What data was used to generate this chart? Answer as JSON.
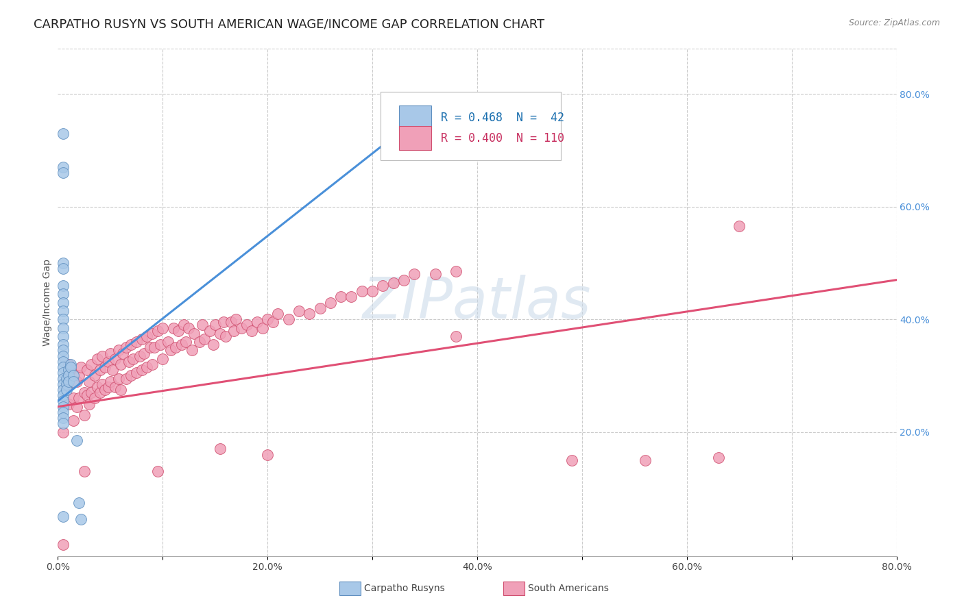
{
  "title": "CARPATHO RUSYN VS SOUTH AMERICAN WAGE/INCOME GAP CORRELATION CHART",
  "source": "Source: ZipAtlas.com",
  "ylabel": "Wage/Income Gap",
  "xlim": [
    0,
    0.8
  ],
  "ylim": [
    -0.02,
    0.88
  ],
  "ytick_right_vals": [
    0.2,
    0.4,
    0.6,
    0.8
  ],
  "ytick_right_labels": [
    "20.0%",
    "40.0%",
    "60.0%",
    "80.0%"
  ],
  "xtick_vals": [
    0.0,
    0.1,
    0.2,
    0.3,
    0.4,
    0.5,
    0.6,
    0.7,
    0.8
  ],
  "xtick_labels": [
    "0.0%",
    "",
    "20.0%",
    "",
    "40.0%",
    "",
    "60.0%",
    "",
    "80.0%"
  ],
  "legend_text": [
    {
      "text": "R = 0.468  N =  42",
      "color": "#1a6faf"
    },
    {
      "text": "R = 0.400  N = 110",
      "color": "#c83060"
    }
  ],
  "legend_entries": [
    {
      "label": "Carpatho Rusyns",
      "scatter_color": "#a8c8e8",
      "edge_color": "#6090c0"
    },
    {
      "label": "South Americans",
      "scatter_color": "#f0a0b8",
      "edge_color": "#d05070"
    }
  ],
  "blue_scatter_x": [
    0.005,
    0.005,
    0.005,
    0.005,
    0.005,
    0.005,
    0.005,
    0.005,
    0.005,
    0.005,
    0.005,
    0.005,
    0.005,
    0.005,
    0.005,
    0.005,
    0.005,
    0.005,
    0.005,
    0.005,
    0.005,
    0.005,
    0.005,
    0.005,
    0.005,
    0.005,
    0.005,
    0.008,
    0.008,
    0.008,
    0.01,
    0.01,
    0.01,
    0.012,
    0.012,
    0.015,
    0.015,
    0.018,
    0.02,
    0.022,
    0.34,
    0.005
  ],
  "blue_scatter_y": [
    0.73,
    0.67,
    0.66,
    0.5,
    0.49,
    0.46,
    0.445,
    0.43,
    0.415,
    0.4,
    0.385,
    0.37,
    0.355,
    0.345,
    0.335,
    0.325,
    0.315,
    0.305,
    0.295,
    0.285,
    0.275,
    0.265,
    0.255,
    0.245,
    0.235,
    0.225,
    0.215,
    0.295,
    0.285,
    0.275,
    0.31,
    0.3,
    0.29,
    0.32,
    0.315,
    0.3,
    0.29,
    0.185,
    0.075,
    0.045,
    0.72,
    0.05
  ],
  "pink_scatter_x": [
    0.005,
    0.008,
    0.01,
    0.01,
    0.012,
    0.015,
    0.015,
    0.018,
    0.018,
    0.02,
    0.02,
    0.022,
    0.025,
    0.025,
    0.028,
    0.028,
    0.03,
    0.03,
    0.032,
    0.032,
    0.035,
    0.035,
    0.038,
    0.038,
    0.04,
    0.04,
    0.042,
    0.042,
    0.045,
    0.045,
    0.048,
    0.048,
    0.05,
    0.05,
    0.052,
    0.055,
    0.055,
    0.058,
    0.058,
    0.06,
    0.06,
    0.062,
    0.065,
    0.065,
    0.068,
    0.07,
    0.07,
    0.072,
    0.075,
    0.075,
    0.078,
    0.08,
    0.08,
    0.082,
    0.085,
    0.085,
    0.088,
    0.09,
    0.09,
    0.092,
    0.095,
    0.098,
    0.1,
    0.1,
    0.105,
    0.108,
    0.11,
    0.112,
    0.115,
    0.118,
    0.12,
    0.122,
    0.125,
    0.128,
    0.13,
    0.135,
    0.138,
    0.14,
    0.145,
    0.148,
    0.15,
    0.155,
    0.158,
    0.16,
    0.165,
    0.168,
    0.17,
    0.175,
    0.18,
    0.185,
    0.19,
    0.195,
    0.2,
    0.205,
    0.21,
    0.22,
    0.23,
    0.24,
    0.25,
    0.26,
    0.27,
    0.28,
    0.29,
    0.3,
    0.31,
    0.32,
    0.33,
    0.34,
    0.36,
    0.38
  ],
  "pink_scatter_y": [
    0.2,
    0.28,
    0.32,
    0.25,
    0.31,
    0.26,
    0.22,
    0.29,
    0.245,
    0.3,
    0.26,
    0.315,
    0.27,
    0.23,
    0.31,
    0.265,
    0.29,
    0.25,
    0.32,
    0.27,
    0.3,
    0.26,
    0.33,
    0.28,
    0.31,
    0.27,
    0.335,
    0.285,
    0.315,
    0.275,
    0.325,
    0.28,
    0.34,
    0.29,
    0.31,
    0.33,
    0.28,
    0.345,
    0.295,
    0.32,
    0.275,
    0.34,
    0.35,
    0.295,
    0.325,
    0.355,
    0.3,
    0.33,
    0.36,
    0.305,
    0.335,
    0.365,
    0.31,
    0.34,
    0.37,
    0.315,
    0.35,
    0.375,
    0.32,
    0.35,
    0.38,
    0.355,
    0.385,
    0.33,
    0.36,
    0.345,
    0.385,
    0.35,
    0.38,
    0.355,
    0.39,
    0.36,
    0.385,
    0.345,
    0.375,
    0.36,
    0.39,
    0.365,
    0.38,
    0.355,
    0.39,
    0.375,
    0.395,
    0.37,
    0.395,
    0.38,
    0.4,
    0.385,
    0.39,
    0.38,
    0.395,
    0.385,
    0.4,
    0.395,
    0.41,
    0.4,
    0.415,
    0.41,
    0.42,
    0.43,
    0.44,
    0.44,
    0.45,
    0.45,
    0.46,
    0.465,
    0.47,
    0.48,
    0.48,
    0.485
  ],
  "pink_scatter_extra_x": [
    0.005,
    0.025,
    0.095,
    0.155,
    0.2,
    0.38,
    0.49,
    0.56,
    0.63,
    0.65
  ],
  "pink_scatter_extra_y": [
    0.0,
    0.13,
    0.13,
    0.17,
    0.16,
    0.37,
    0.15,
    0.15,
    0.155,
    0.565
  ],
  "blue_line_x": [
    0.0,
    0.355
  ],
  "blue_line_y": [
    0.255,
    0.775
  ],
  "pink_line_x": [
    0.0,
    0.8
  ],
  "pink_line_y": [
    0.245,
    0.47
  ],
  "blue_line_color": "#4a90d9",
  "pink_line_color": "#e05075",
  "scatter_blue_color": "#a8c8e8",
  "scatter_blue_edge": "#6090c0",
  "scatter_pink_color": "#f0a0b8",
  "scatter_pink_edge": "#d05070",
  "bg_color": "#ffffff",
  "grid_color": "#cccccc",
  "title_fontsize": 13,
  "tick_fontsize": 10,
  "legend_fontsize": 12,
  "source_fontsize": 9
}
